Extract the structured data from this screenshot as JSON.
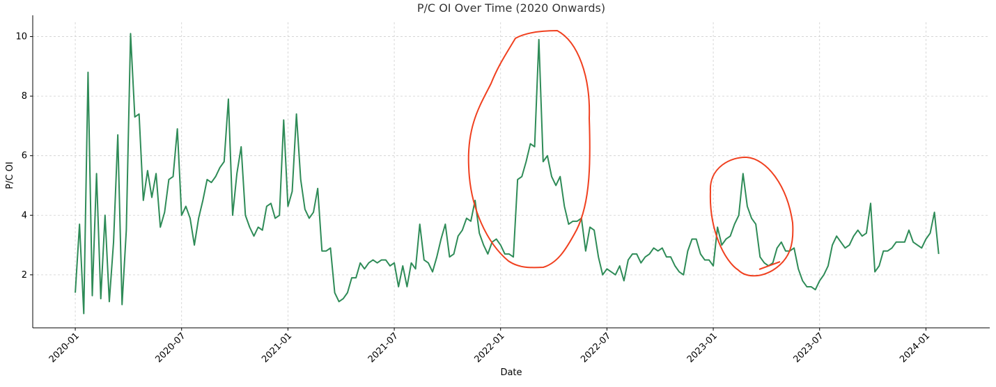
{
  "chart_data": {
    "type": "line",
    "title": "P/C OI Over Time (2020 Onwards)",
    "x_label": "Date",
    "y_label": "P/C OI",
    "color": "#2e8b57",
    "grid": true,
    "xlim": [
      2019.8,
      2024.3
    ],
    "ylim": [
      0.22,
      10.48
    ],
    "xticks": [
      {
        "value": 2020,
        "label": "2020-01"
      },
      {
        "value": 2020.5,
        "label": "2020-07"
      },
      {
        "value": 2021,
        "label": "2021-01"
      },
      {
        "value": 2021.5,
        "label": "2021-07"
      },
      {
        "value": 2022,
        "label": "2022-01"
      },
      {
        "value": 2022.5,
        "label": "2022-07"
      },
      {
        "value": 2023,
        "label": "2023-01"
      },
      {
        "value": 2023.5,
        "label": "2023-07"
      },
      {
        "value": 2024,
        "label": "2024-01"
      }
    ],
    "yticks": [
      2,
      4,
      6,
      8,
      10
    ],
    "x": [
      2020,
      2020.02,
      2020.04,
      2020.06,
      2020.08,
      2020.1,
      2020.12,
      2020.14,
      2020.16,
      2020.18,
      2020.2,
      2020.22,
      2020.24,
      2020.26,
      2020.28,
      2020.3,
      2020.32,
      2020.34,
      2020.36,
      2020.38,
      2020.4,
      2020.42,
      2020.44,
      2020.46,
      2020.48,
      2020.5,
      2020.52,
      2020.54,
      2020.56,
      2020.58,
      2020.6,
      2020.62,
      2020.64,
      2020.66,
      2020.68,
      2020.7,
      2020.72,
      2020.74,
      2020.76,
      2020.78,
      2020.8,
      2020.82,
      2020.84,
      2020.86,
      2020.88,
      2020.9,
      2020.92,
      2020.94,
      2020.96,
      2020.98,
      2021,
      2021.02,
      2021.04,
      2021.06,
      2021.08,
      2021.1,
      2021.12,
      2021.14,
      2021.16,
      2021.18,
      2021.2,
      2021.22,
      2021.24,
      2021.26,
      2021.28,
      2021.3,
      2021.32,
      2021.34,
      2021.36,
      2021.38,
      2021.4,
      2021.42,
      2021.44,
      2021.46,
      2021.48,
      2021.5,
      2021.52,
      2021.54,
      2021.56,
      2021.58,
      2021.6,
      2021.62,
      2021.64,
      2021.66,
      2021.68,
      2021.7,
      2021.72,
      2021.74,
      2021.76,
      2021.78,
      2021.8,
      2021.82,
      2021.84,
      2021.86,
      2021.88,
      2021.9,
      2021.92,
      2021.94,
      2021.96,
      2021.98,
      2022,
      2022.02,
      2022.04,
      2022.06,
      2022.08,
      2022.1,
      2022.12,
      2022.14,
      2022.16,
      2022.18,
      2022.2,
      2022.22,
      2022.24,
      2022.26,
      2022.28,
      2022.3,
      2022.32,
      2022.34,
      2022.36,
      2022.38,
      2022.4,
      2022.42,
      2022.44,
      2022.46,
      2022.48,
      2022.5,
      2022.52,
      2022.54,
      2022.56,
      2022.58,
      2022.6,
      2022.62,
      2022.64,
      2022.66,
      2022.68,
      2022.7,
      2022.72,
      2022.74,
      2022.76,
      2022.78,
      2022.8,
      2022.82,
      2022.84,
      2022.86,
      2022.88,
      2022.9,
      2022.92,
      2022.94,
      2022.96,
      2022.98,
      2023,
      2023.02,
      2023.04,
      2023.06,
      2023.08,
      2023.1,
      2023.12,
      2023.14,
      2023.16,
      2023.18,
      2023.2,
      2023.22,
      2023.24,
      2023.26,
      2023.28,
      2023.3,
      2023.32,
      2023.34,
      2023.36,
      2023.38,
      2023.4,
      2023.42,
      2023.44,
      2023.46,
      2023.48,
      2023.5,
      2023.52,
      2023.54,
      2023.56,
      2023.58,
      2023.6,
      2023.62,
      2023.64,
      2023.66,
      2023.68,
      2023.7,
      2023.72,
      2023.74,
      2023.76,
      2023.78,
      2023.8,
      2023.82,
      2023.84,
      2023.86,
      2023.88,
      2023.9,
      2023.92,
      2023.94,
      2023.96,
      2023.98,
      2024,
      2024.02,
      2024.04,
      2024.06
    ],
    "values": [
      1.4,
      3.7,
      0.7,
      8.8,
      1.3,
      5.4,
      1.2,
      4.0,
      1.1,
      3.1,
      6.7,
      1.0,
      3.5,
      10.1,
      7.3,
      7.4,
      4.5,
      5.5,
      4.6,
      5.4,
      3.6,
      4.1,
      5.2,
      5.3,
      6.9,
      4.0,
      4.3,
      3.9,
      3.0,
      3.9,
      4.5,
      5.2,
      5.1,
      5.3,
      5.6,
      5.8,
      7.9,
      4.0,
      5.4,
      6.3,
      4.0,
      3.6,
      3.3,
      3.6,
      3.5,
      4.3,
      4.4,
      3.9,
      4.0,
      7.2,
      4.3,
      4.8,
      7.4,
      5.2,
      4.2,
      3.9,
      4.1,
      4.9,
      2.8,
      2.8,
      2.9,
      1.4,
      1.1,
      1.2,
      1.4,
      1.9,
      1.9,
      2.4,
      2.2,
      2.4,
      2.5,
      2.4,
      2.5,
      2.5,
      2.3,
      2.4,
      1.6,
      2.3,
      1.6,
      2.4,
      2.2,
      3.7,
      2.5,
      2.4,
      2.1,
      2.6,
      3.2,
      3.7,
      2.6,
      2.7,
      3.3,
      3.5,
      3.9,
      3.8,
      4.5,
      3.4,
      3.0,
      2.7,
      3.1,
      3.2,
      3.0,
      2.7,
      2.7,
      2.6,
      5.2,
      5.3,
      5.8,
      6.4,
      6.3,
      9.9,
      5.8,
      6.0,
      5.3,
      5.0,
      5.3,
      4.3,
      3.7,
      3.8,
      3.8,
      3.9,
      2.8,
      3.6,
      3.5,
      2.6,
      2.0,
      2.2,
      2.1,
      2.0,
      2.3,
      1.8,
      2.5,
      2.7,
      2.7,
      2.4,
      2.6,
      2.7,
      2.9,
      2.8,
      2.9,
      2.6,
      2.6,
      2.3,
      2.1,
      2.0,
      2.8,
      3.2,
      3.2,
      2.7,
      2.5,
      2.5,
      2.3,
      3.6,
      3.0,
      3.2,
      3.3,
      3.7,
      4.0,
      5.4,
      4.3,
      3.9,
      3.7,
      2.6,
      2.4,
      2.3,
      2.4,
      2.9,
      3.1,
      2.8,
      2.8,
      2.9,
      2.2,
      1.8,
      1.6,
      1.6,
      1.5,
      1.8,
      2.0,
      2.3,
      3.0,
      3.3,
      3.1,
      2.9,
      3.0,
      3.3,
      3.5,
      3.3,
      3.4,
      4.4,
      2.1,
      2.3,
      2.8,
      2.8,
      2.9,
      3.1,
      3.1,
      3.1,
      3.5,
      3.1,
      3.0,
      2.9,
      3.2,
      3.4,
      4.1,
      2.7
    ]
  }
}
